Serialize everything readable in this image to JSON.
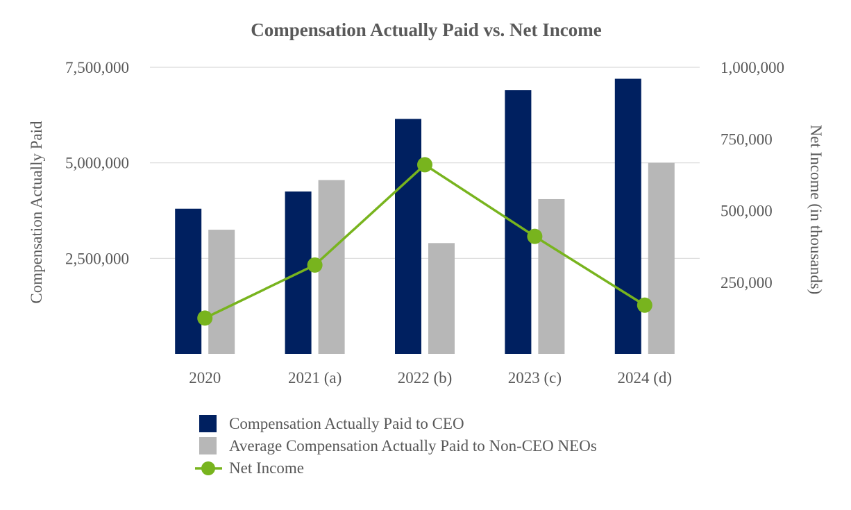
{
  "chart_data": {
    "type": "bar",
    "title": "Compensation Actually Paid vs. Net Income",
    "categories": [
      "2020",
      "2021 (a)",
      "2022 (b)",
      "2023 (c)",
      "2024 (d)"
    ],
    "series": [
      {
        "name": "Compensation Actually Paid to CEO",
        "type": "bar",
        "axis": "left",
        "color": "#002060",
        "values": [
          3800000,
          4250000,
          6150000,
          6900000,
          7200000
        ]
      },
      {
        "name": "Average Compensation Actually Paid to Non-CEO NEOs",
        "type": "bar",
        "axis": "left",
        "color": "#b7b7b7",
        "values": [
          3250000,
          4550000,
          2900000,
          4050000,
          5000000
        ]
      },
      {
        "name": "Net Income",
        "type": "line",
        "axis": "right",
        "color": "#78b41e",
        "values": [
          125000,
          310000,
          660000,
          410000,
          170000
        ]
      }
    ],
    "y_left": {
      "label": "Compensation Actually Paid",
      "ylim": [
        0,
        7500000
      ],
      "ticks": [
        2500000,
        5000000,
        7500000
      ],
      "tick_labels": [
        "2,500,000",
        "5,000,000",
        "7,500,000"
      ]
    },
    "y_right": {
      "label": "Net Income (in thousands)",
      "ylim": [
        0,
        1000000
      ],
      "ticks": [
        250000,
        500000,
        750000,
        1000000
      ],
      "tick_labels": [
        "250,000",
        "500,000",
        "750,000",
        "1,000,000"
      ]
    },
    "grid": true,
    "legend": "bottom"
  }
}
